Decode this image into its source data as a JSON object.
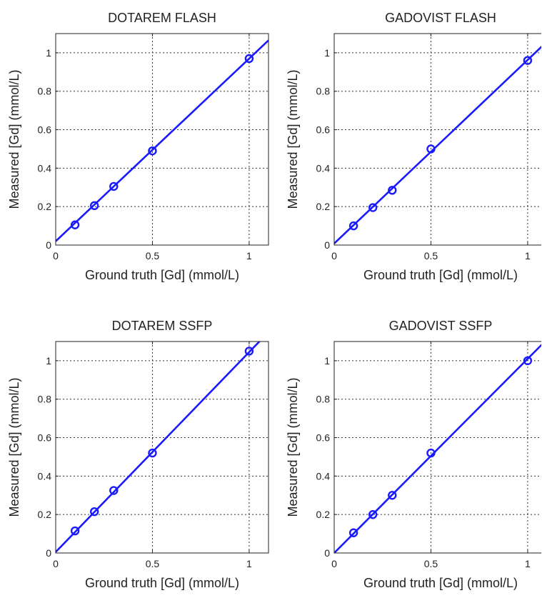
{
  "chart_data": [
    {
      "type": "scatter",
      "title": "DOTAREM FLASH",
      "xlabel": "Ground truth [Gd] (mmol/L)",
      "ylabel": "Measured [Gd] (mmol/L)",
      "xlim": [
        0,
        1.1
      ],
      "ylim": [
        0,
        1.1
      ],
      "xticks": [
        0,
        0.5,
        1
      ],
      "yticks": [
        0,
        0.2,
        0.4,
        0.6,
        0.8,
        1
      ],
      "grid": true,
      "color": "#1a1aff",
      "points": {
        "x": [
          0.1,
          0.2,
          0.3,
          0.5,
          1.0
        ],
        "y": [
          0.105,
          0.205,
          0.305,
          0.49,
          0.97
        ]
      },
      "fit_line": {
        "slope": 0.95,
        "intercept": 0.02
      }
    },
    {
      "type": "scatter",
      "title": "GADOVIST FLASH",
      "xlabel": "Ground truth [Gd] (mmol/L)",
      "ylabel": "Measured [Gd] (mmol/L)",
      "xlim": [
        0,
        1.1
      ],
      "ylim": [
        0,
        1.1
      ],
      "xticks": [
        0,
        0.5,
        1
      ],
      "yticks": [
        0,
        0.2,
        0.4,
        0.6,
        0.8,
        1
      ],
      "grid": true,
      "color": "#1a1aff",
      "points": {
        "x": [
          0.1,
          0.2,
          0.3,
          0.5,
          1.0
        ],
        "y": [
          0.1,
          0.195,
          0.285,
          0.5,
          0.96
        ]
      },
      "fit_line": {
        "slope": 0.955,
        "intercept": 0.008
      }
    },
    {
      "type": "scatter",
      "title": "DOTAREM SSFP",
      "xlabel": "Ground truth [Gd] (mmol/L)",
      "ylabel": "Measured [Gd] (mmol/L)",
      "xlim": [
        0,
        1.1
      ],
      "ylim": [
        0,
        1.1
      ],
      "xticks": [
        0,
        0.5,
        1
      ],
      "yticks": [
        0,
        0.2,
        0.4,
        0.6,
        0.8,
        1
      ],
      "grid": true,
      "color": "#1a1aff",
      "points": {
        "x": [
          0.1,
          0.2,
          0.3,
          0.5,
          1.0
        ],
        "y": [
          0.115,
          0.215,
          0.325,
          0.52,
          1.05
        ]
      },
      "fit_line": {
        "slope": 1.04,
        "intercept": 0.005
      }
    },
    {
      "type": "scatter",
      "title": "GADOVIST SSFP",
      "xlabel": "Ground truth [Gd] (mmol/L)",
      "ylabel": "Measured [Gd] (mmol/L)",
      "xlim": [
        0,
        1.1
      ],
      "ylim": [
        0,
        1.1
      ],
      "xticks": [
        0,
        0.5,
        1
      ],
      "yticks": [
        0,
        0.2,
        0.4,
        0.6,
        0.8,
        1
      ],
      "grid": true,
      "color": "#1a1aff",
      "points": {
        "x": [
          0.1,
          0.2,
          0.3,
          0.5,
          1.0
        ],
        "y": [
          0.105,
          0.2,
          0.3,
          0.52,
          1.0
        ]
      },
      "fit_line": {
        "slope": 1.01,
        "intercept": 0.0
      }
    }
  ]
}
